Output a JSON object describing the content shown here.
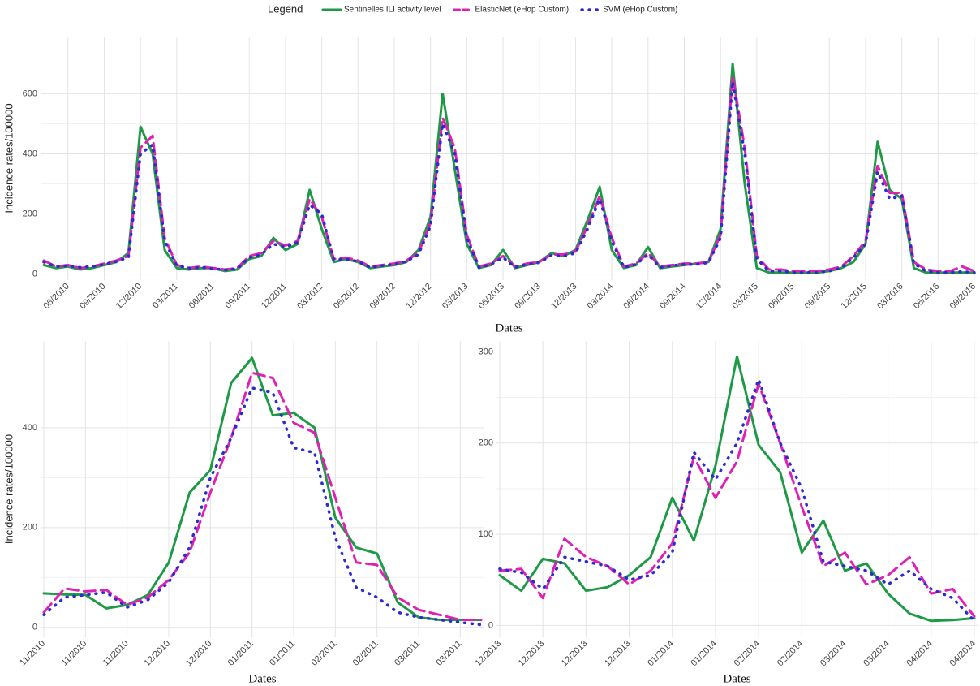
{
  "legend_title": "Legend",
  "chart_data": [
    {
      "type": "line",
      "ylabel": "Incidence rates/100000",
      "xlabel": "Dates",
      "categories": [
        null,
        null,
        "06/2010",
        null,
        null,
        "09/2010",
        null,
        null,
        "12/2010",
        null,
        null,
        "03/2011",
        null,
        null,
        "06/2011",
        null,
        null,
        "09/2011",
        null,
        null,
        "12/2011",
        null,
        null,
        "03/2012",
        null,
        null,
        "06/2012",
        null,
        null,
        "09/2012",
        null,
        null,
        "12/2012",
        null,
        null,
        "03/2013",
        null,
        null,
        "06/2013",
        null,
        null,
        "09/2013",
        null,
        null,
        "12/2013",
        null,
        null,
        "03/2014",
        null,
        null,
        "06/2014",
        null,
        null,
        "09/2014",
        null,
        null,
        "12/2014",
        null,
        null,
        "03/2015",
        null,
        null,
        "06/2015",
        null,
        null,
        "09/2015",
        null,
        null,
        "12/2015",
        null,
        null,
        "03/2016",
        null,
        null,
        "06/2016",
        null,
        null,
        "09/2016"
      ],
      "ylim": [
        -20,
        790
      ],
      "yticks": [
        0,
        200,
        400,
        600
      ],
      "grid": true,
      "series": [
        {
          "name": "Sentinelles ILI activity level",
          "color": "#1e9a46",
          "style": "solid",
          "values": [
            30,
            20,
            25,
            15,
            20,
            30,
            40,
            70,
            490,
            400,
            80,
            20,
            15,
            20,
            20,
            10,
            15,
            50,
            60,
            120,
            80,
            100,
            280,
            150,
            40,
            50,
            40,
            20,
            25,
            30,
            40,
            80,
            190,
            600,
            350,
            100,
            20,
            30,
            80,
            20,
            30,
            40,
            70,
            60,
            80,
            180,
            290,
            80,
            20,
            30,
            90,
            20,
            25,
            30,
            35,
            40,
            150,
            700,
            300,
            20,
            5,
            5,
            5,
            5,
            5,
            10,
            20,
            40,
            100,
            440,
            280,
            250,
            20,
            5,
            5,
            5,
            5,
            5
          ]
        },
        {
          "name": "ElasticNet (eHop Custom)",
          "color": "#e020b4",
          "style": "dashed",
          "values": [
            45,
            25,
            30,
            20,
            25,
            35,
            45,
            60,
            420,
            460,
            120,
            30,
            20,
            25,
            20,
            15,
            20,
            60,
            70,
            110,
            95,
            110,
            250,
            190,
            50,
            55,
            45,
            25,
            30,
            35,
            45,
            70,
            170,
            520,
            420,
            130,
            25,
            35,
            60,
            25,
            35,
            40,
            65,
            65,
            75,
            160,
            260,
            120,
            25,
            35,
            70,
            25,
            30,
            35,
            35,
            40,
            130,
            660,
            420,
            60,
            15,
            15,
            10,
            10,
            10,
            15,
            25,
            60,
            110,
            360,
            270,
            270,
            40,
            15,
            10,
            10,
            25,
            10
          ]
        },
        {
          "name": "SVM (eHop Custom)",
          "color": "#2b2bd0",
          "style": "dotted",
          "values": [
            40,
            25,
            28,
            22,
            25,
            32,
            42,
            55,
            400,
            430,
            110,
            28,
            20,
            22,
            18,
            14,
            18,
            55,
            65,
            100,
            90,
            105,
            230,
            200,
            48,
            50,
            42,
            22,
            28,
            32,
            42,
            65,
            160,
            500,
            400,
            120,
            22,
            32,
            55,
            22,
            32,
            38,
            62,
            60,
            70,
            150,
            250,
            110,
            22,
            32,
            65,
            22,
            28,
            32,
            32,
            38,
            120,
            640,
            400,
            50,
            10,
            10,
            5,
            5,
            5,
            10,
            20,
            55,
            100,
            340,
            250,
            260,
            35,
            10,
            5,
            5,
            8,
            5
          ]
        }
      ]
    },
    {
      "type": "line",
      "ylabel": "Incidence rates/100000",
      "xlabel": "Dates",
      "categories": [
        "11/2010",
        null,
        "11/2010",
        null,
        "11/2010",
        null,
        "12/2010",
        null,
        "12/2010",
        null,
        "01/2011",
        null,
        "01/2011",
        null,
        "02/2011",
        null,
        "02/2011",
        null,
        "03/2011",
        null,
        "03/2011",
        null
      ],
      "ylim": [
        -20,
        574
      ],
      "yticks": [
        0,
        200,
        400
      ],
      "grid": true,
      "series": [
        {
          "color": "#1e9a46",
          "style": "solid",
          "values": [
            68,
            66,
            65,
            38,
            45,
            65,
            130,
            270,
            315,
            490,
            540,
            425,
            430,
            400,
            220,
            160,
            148,
            50,
            20,
            15,
            15,
            15
          ]
        },
        {
          "color": "#e020b4",
          "style": "dashed",
          "values": [
            30,
            78,
            72,
            75,
            45,
            60,
            95,
            150,
            270,
            380,
            510,
            500,
            410,
            390,
            260,
            130,
            125,
            60,
            35,
            25,
            15,
            15
          ]
        },
        {
          "color": "#2b2bd0",
          "style": "dotted",
          "values": [
            25,
            60,
            65,
            70,
            40,
            55,
            90,
            160,
            300,
            380,
            480,
            470,
            360,
            350,
            180,
            80,
            60,
            30,
            20,
            15,
            10,
            5
          ]
        }
      ]
    },
    {
      "type": "line",
      "ylabel": null,
      "xlabel": "Dates",
      "categories": [
        "12/2013",
        null,
        "12/2013",
        null,
        "12/2013",
        null,
        "12/2013",
        null,
        "01/2014",
        null,
        "01/2014",
        null,
        "02/2014",
        null,
        "02/2014",
        null,
        "03/2014",
        null,
        "03/2014",
        null,
        "04/2014",
        null,
        "04/2014"
      ],
      "ylim": [
        -13,
        312
      ],
      "yticks": [
        0,
        100,
        200,
        300
      ],
      "grid": true,
      "series": [
        {
          "color": "#1e9a46",
          "style": "solid",
          "values": [
            55,
            38,
            73,
            68,
            38,
            42,
            55,
            75,
            140,
            93,
            175,
            295,
            198,
            168,
            80,
            115,
            60,
            68,
            35,
            13,
            5,
            6,
            8
          ]
        },
        {
          "color": "#e020b4",
          "style": "dashed",
          "values": [
            60,
            62,
            30,
            95,
            75,
            65,
            45,
            60,
            90,
            185,
            140,
            180,
            265,
            200,
            130,
            65,
            80,
            45,
            55,
            75,
            35,
            40,
            10
          ]
        },
        {
          "color": "#2b2bd0",
          "style": "dotted",
          "values": [
            62,
            58,
            40,
            75,
            70,
            65,
            50,
            55,
            80,
            190,
            160,
            200,
            270,
            200,
            150,
            70,
            65,
            60,
            45,
            60,
            40,
            30,
            5
          ]
        }
      ]
    }
  ]
}
